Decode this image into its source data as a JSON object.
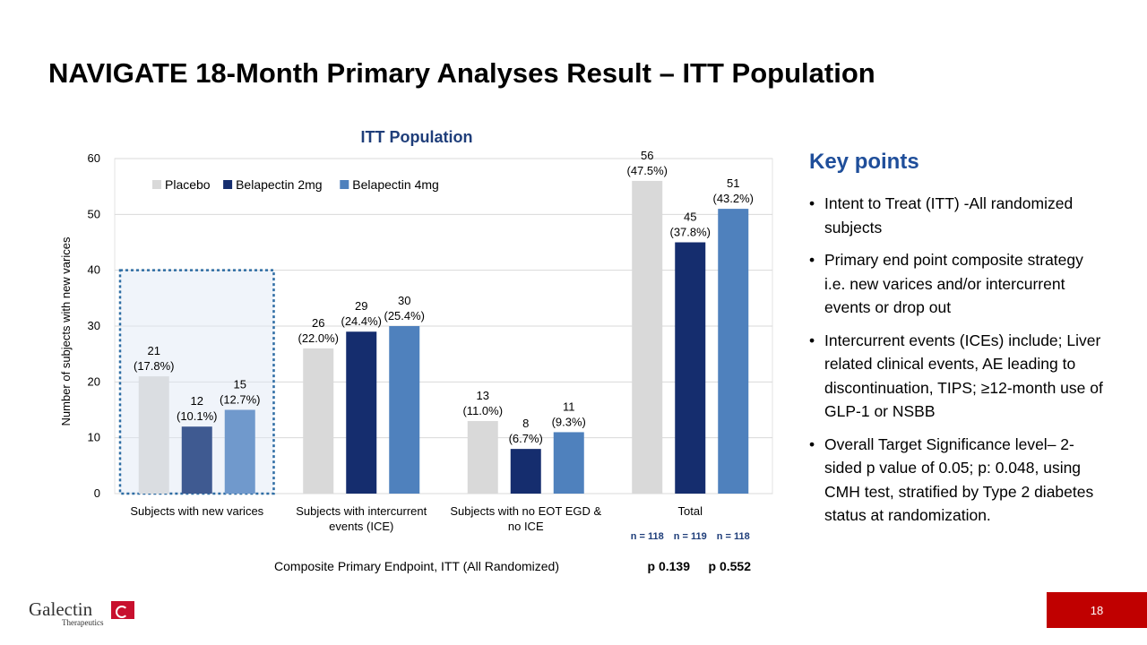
{
  "slide": {
    "title": "NAVIGATE 18-Month Primary Analyses Result – ITT Population",
    "page_number": "18"
  },
  "chart_data": {
    "type": "bar",
    "title": "ITT Population",
    "ylabel": "Number of subjects with new varices",
    "xlabel": "Composite Primary Endpoint, ITT (All Randomized)",
    "ylim": [
      0,
      60
    ],
    "yticks": [
      0,
      10,
      20,
      30,
      40,
      50,
      60
    ],
    "grid": true,
    "legend_position": "top-left",
    "categories": [
      "Subjects with new varices",
      "Subjects with intercurrent events (ICE)",
      "Subjects with no EOT EGD & no ICE",
      "Total"
    ],
    "category_lines": [
      [
        "Subjects with new varices"
      ],
      [
        "Subjects with intercurrent",
        "events (ICE)"
      ],
      [
        "Subjects with no EOT EGD &",
        "no ICE"
      ],
      [
        "Total"
      ]
    ],
    "series": [
      {
        "name": "Placebo",
        "color": "#D9D9D9",
        "values": [
          21,
          26,
          13,
          56
        ],
        "percents": [
          "(17.8%)",
          "(22.0%)",
          "(11.0%)",
          "(47.5%)"
        ]
      },
      {
        "name": "Belapectin 2mg",
        "color": "#152D6E",
        "values": [
          12,
          29,
          8,
          45
        ],
        "percents": [
          "(10.1%)",
          "(24.4%)",
          "(6.7%)",
          "(37.8%)"
        ]
      },
      {
        "name": "Belapectin 4mg",
        "color": "#4F81BD",
        "values": [
          15,
          30,
          11,
          51
        ],
        "percents": [
          "(12.7%)",
          "(25.4%)",
          "(9.3%)",
          "(43.2%)"
        ]
      }
    ],
    "highlight_category": "Subjects with new varices",
    "sample_sizes": [
      "n = 118",
      "n = 119",
      "n = 118"
    ],
    "p_values": [
      "p 0.139",
      "p 0.552"
    ]
  },
  "key_points": {
    "title": "Key points",
    "items": [
      "Intent to Treat (ITT) -All randomized subjects",
      "Primary end point composite strategy i.e. new varices and/or intercurrent events or drop out",
      "Intercurrent events (ICEs) include; Liver related clinical events, AE leading to discontinuation, TIPS; ≥12-month use of GLP-1 or NSBB",
      "Overall Target Significance level– 2-sided p value of 0.05; p: 0.048, using CMH test, stratified by Type 2 diabetes status at randomization."
    ]
  },
  "logo": {
    "name": "Galectin",
    "subtitle": "Therapeutics"
  }
}
